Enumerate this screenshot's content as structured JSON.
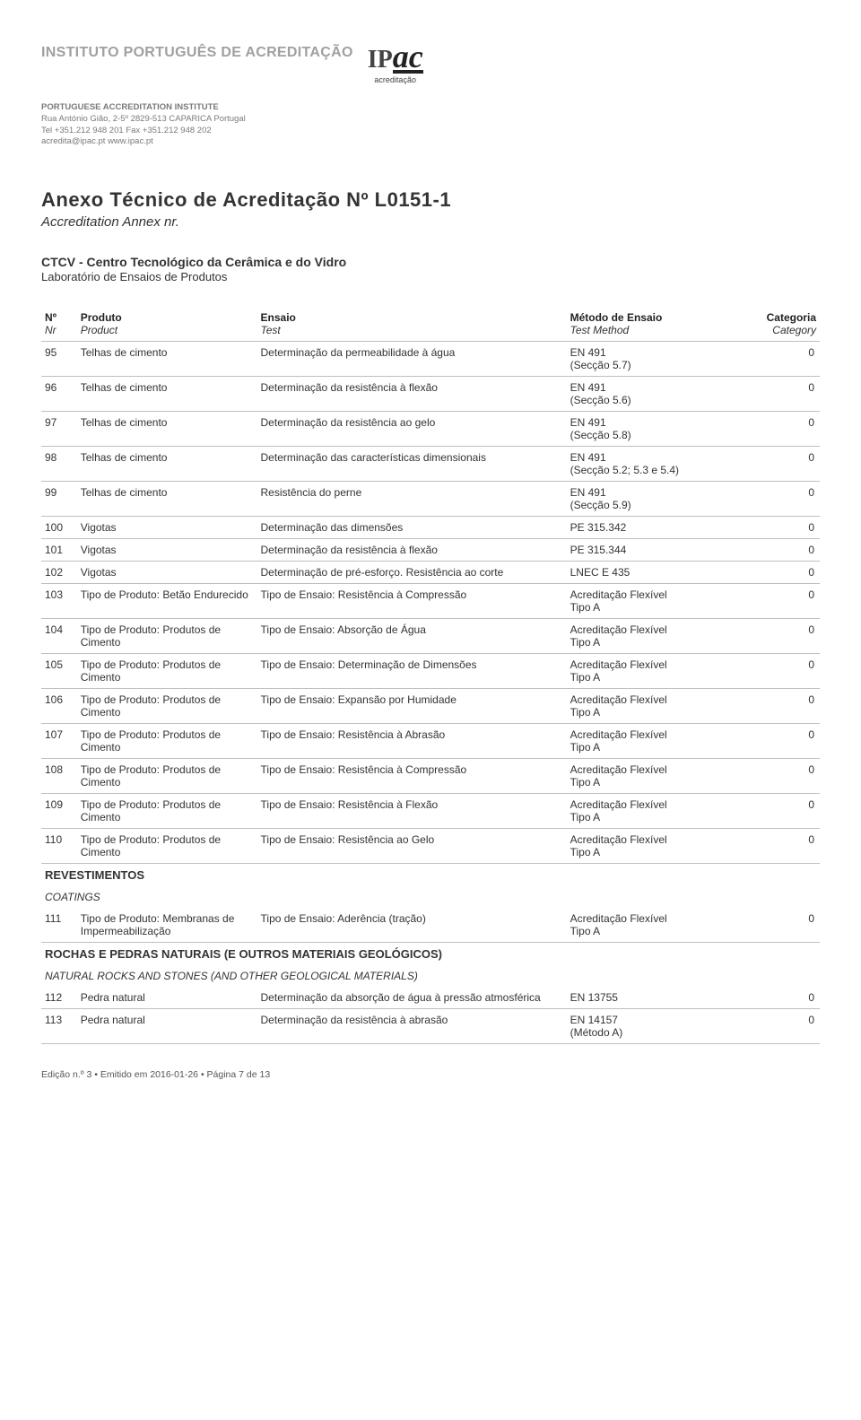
{
  "header": {
    "institute_pt": "INSTITUTO PORTUGUÊS DE ACREDITAÇÃO",
    "institute_en": "PORTUGUESE ACCREDITATION INSTITUTE",
    "address": "Rua António Gião, 2-5º 2829-513 CAPARICA Portugal",
    "contacts": "Tel +351.212 948 201 Fax +351.212 948 202",
    "webmail": "acredita@ipac.pt  www.ipac.pt",
    "logo_ip": "IP",
    "logo_ac": "ac",
    "logo_sub": "acreditação"
  },
  "title": {
    "main": "Anexo Técnico de Acreditação Nº L0151-1",
    "sub": "Accreditation Annex nr."
  },
  "company": {
    "name": "CTCV - Centro Tecnológico da Cerâmica e do Vidro",
    "lab": "Laboratório de Ensaios de Produtos"
  },
  "columns": {
    "nr_pt": "Nº",
    "nr_en": "Nr",
    "prod_pt": "Produto",
    "prod_en": "Product",
    "test_pt": "Ensaio",
    "test_en": "Test",
    "meth_pt": "Método de Ensaio",
    "meth_en": "Test Method",
    "cat_pt": "Categoria",
    "cat_en": "Category"
  },
  "rows": [
    {
      "nr": "95",
      "prod": "Telhas de cimento",
      "test": "Determinação da permeabilidade à água",
      "meth": "EN 491\n(Secção 5.7)",
      "cat": "0"
    },
    {
      "nr": "96",
      "prod": "Telhas de cimento",
      "test": "Determinação da resistência à flexão",
      "meth": "EN 491\n(Secção 5.6)",
      "cat": "0"
    },
    {
      "nr": "97",
      "prod": "Telhas de cimento",
      "test": "Determinação da resistência ao gelo",
      "meth": "EN 491\n(Secção 5.8)",
      "cat": "0"
    },
    {
      "nr": "98",
      "prod": "Telhas de cimento",
      "test": "Determinação das características dimensionais",
      "meth": "EN 491\n(Secção 5.2; 5.3 e 5.4)",
      "cat": "0"
    },
    {
      "nr": "99",
      "prod": "Telhas de cimento",
      "test": "Resistência do perne",
      "meth": "EN 491\n(Secção 5.9)",
      "cat": "0"
    },
    {
      "nr": "100",
      "prod": "Vigotas",
      "test": "Determinação das dimensões",
      "meth": "PE 315.342",
      "cat": "0"
    },
    {
      "nr": "101",
      "prod": "Vigotas",
      "test": "Determinação da resistência à flexão",
      "meth": "PE 315.344",
      "cat": "0"
    },
    {
      "nr": "102",
      "prod": "Vigotas",
      "test": "Determinação de pré-esforço. Resistência ao corte",
      "meth": "LNEC E 435",
      "cat": "0"
    },
    {
      "nr": "103",
      "prod": "Tipo de Produto: Betão Endurecido",
      "test": "Tipo de Ensaio: Resistência à Compressão",
      "meth": "Acreditação Flexível\nTipo A",
      "cat": "0"
    },
    {
      "nr": "104",
      "prod": "Tipo de Produto: Produtos de Cimento",
      "test": "Tipo de Ensaio: Absorção de Água",
      "meth": "Acreditação Flexível\nTipo A",
      "cat": "0"
    },
    {
      "nr": "105",
      "prod": "Tipo de Produto: Produtos de Cimento",
      "test": "Tipo de Ensaio: Determinação de Dimensões",
      "meth": "Acreditação Flexível\nTipo A",
      "cat": "0"
    },
    {
      "nr": "106",
      "prod": "Tipo de Produto: Produtos de Cimento",
      "test": "Tipo de Ensaio: Expansão por Humidade",
      "meth": "Acreditação Flexível\nTipo A",
      "cat": "0"
    },
    {
      "nr": "107",
      "prod": "Tipo de Produto: Produtos de Cimento",
      "test": "Tipo de Ensaio: Resistência à Abrasão",
      "meth": "Acreditação Flexível\nTipo A",
      "cat": "0"
    },
    {
      "nr": "108",
      "prod": "Tipo de Produto: Produtos de Cimento",
      "test": "Tipo de Ensaio: Resistência à Compressão",
      "meth": "Acreditação Flexível\nTipo A",
      "cat": "0"
    },
    {
      "nr": "109",
      "prod": "Tipo de Produto: Produtos de Cimento",
      "test": "Tipo de Ensaio: Resistência à Flexão",
      "meth": "Acreditação Flexível\nTipo A",
      "cat": "0"
    },
    {
      "nr": "110",
      "prod": "Tipo de Produto: Produtos de Cimento",
      "test": "Tipo de Ensaio: Resistência ao Gelo",
      "meth": "Acreditação Flexível\nTipo A",
      "cat": "0"
    }
  ],
  "section_revest": {
    "heading": "REVESTIMENTOS",
    "sub": "COATINGS"
  },
  "rows_revest": [
    {
      "nr": "111",
      "prod": "Tipo de Produto: Membranas de Impermeabilização",
      "test": "Tipo de Ensaio: Aderência (tração)",
      "meth": "Acreditação Flexível\nTipo A",
      "cat": "0"
    }
  ],
  "section_rochas": {
    "heading": "ROCHAS E PEDRAS NATURAIS (E OUTROS MATERIAIS GEOLÓGICOS)",
    "sub": "NATURAL ROCKS AND STONES (AND OTHER GEOLOGICAL MATERIALS)"
  },
  "rows_rochas": [
    {
      "nr": "112",
      "prod": "Pedra natural",
      "test": "Determinação da absorção de água à pressão atmosférica",
      "meth": "EN 13755",
      "cat": "0"
    },
    {
      "nr": "113",
      "prod": "Pedra natural",
      "test": "Determinação da resistência à abrasão",
      "meth": "EN 14157\n(Método A)",
      "cat": "0"
    }
  ],
  "footer": "Edição n.º 3 • Emitido em 2016-01-26 • Página 7 de 13"
}
